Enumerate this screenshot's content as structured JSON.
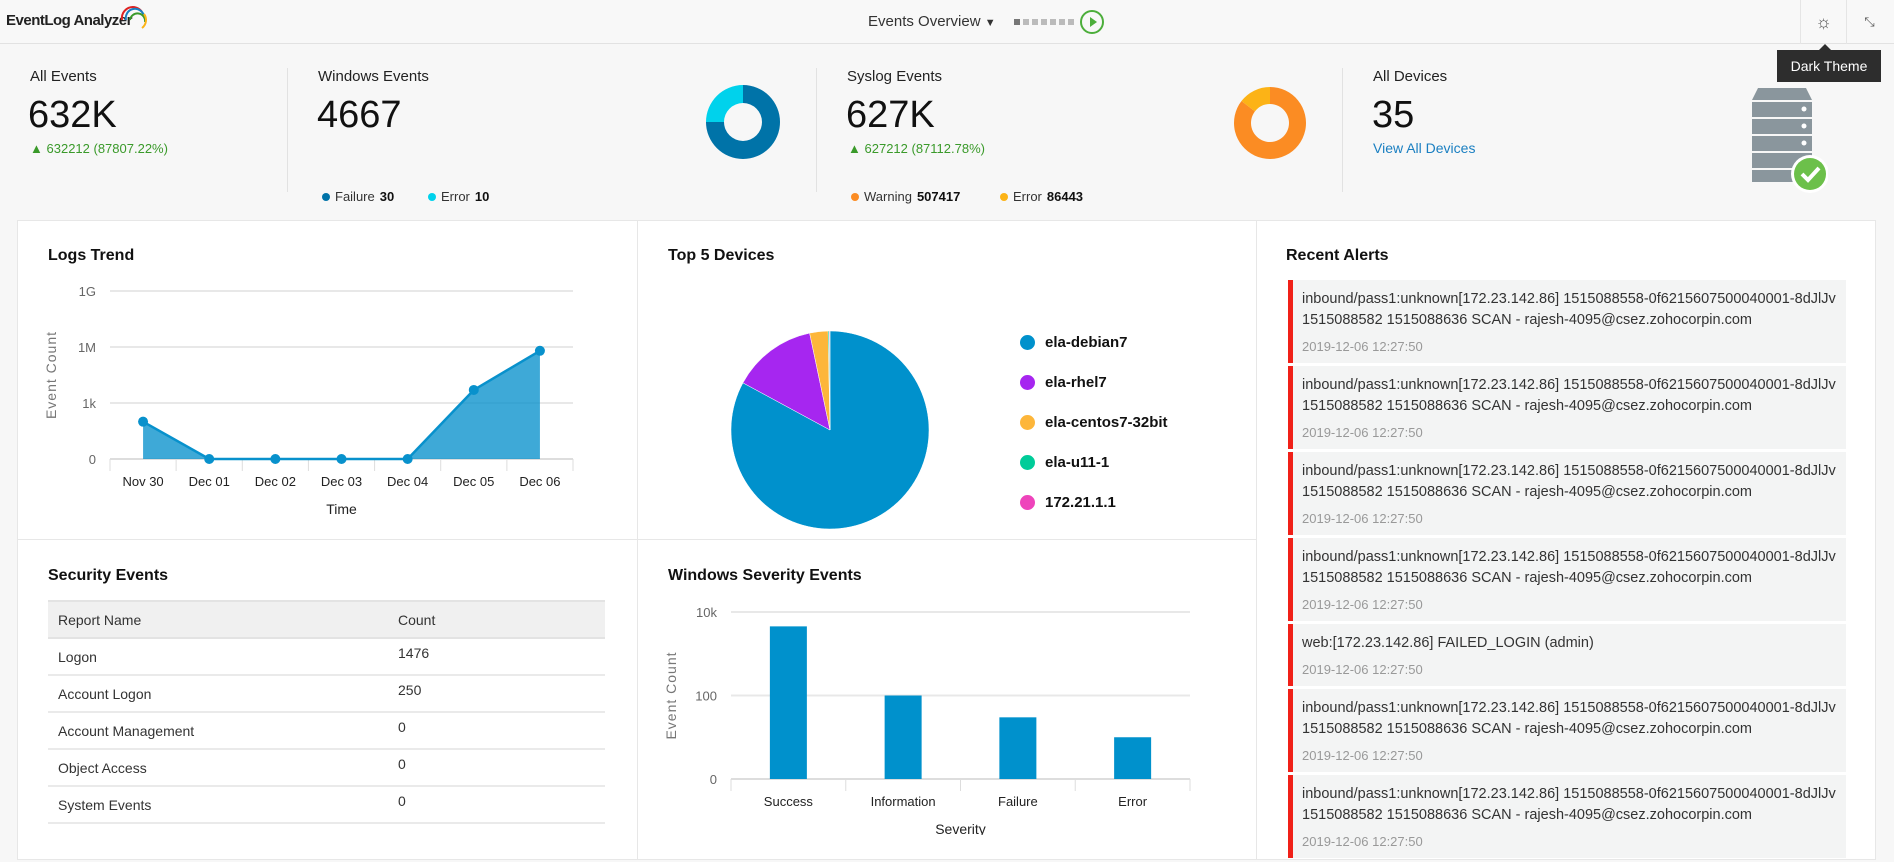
{
  "header": {
    "app_name": "EventLog Analyzer",
    "dashboard": "Events Overview",
    "tooltip": "Dark Theme"
  },
  "stats": {
    "all_events": {
      "title": "All Events",
      "value": "632K",
      "change": "632212 (87807.22%)"
    },
    "windows_events": {
      "title": "Windows Events",
      "value": "4667",
      "legend": [
        {
          "label": "Failure",
          "value": "30",
          "color": "#0073a8"
        },
        {
          "label": "Error",
          "value": "10",
          "color": "#00d2ec"
        }
      ]
    },
    "syslog_events": {
      "title": "Syslog Events",
      "value": "627K",
      "change": "627212 (87112.78%)",
      "legend": [
        {
          "label": "Warning",
          "value": "507417",
          "color": "#fb8c23"
        },
        {
          "label": "Error",
          "value": "86443",
          "color": "#fcb316"
        }
      ]
    },
    "all_devices": {
      "title": "All Devices",
      "value": "35",
      "link": "View All Devices"
    }
  },
  "panels": {
    "logs_trend": "Logs Trend",
    "top5": "Top 5 Devices",
    "alerts": "Recent Alerts",
    "security": "Security Events",
    "severity": "Windows Severity Events"
  },
  "security_table": {
    "headers": [
      "Report Name",
      "Count"
    ],
    "rows": [
      [
        "Logon",
        "1476"
      ],
      [
        "Account Logon",
        "250"
      ],
      [
        "Account Management",
        "0"
      ],
      [
        "Object Access",
        "0"
      ],
      [
        "System Events",
        "0"
      ]
    ]
  },
  "alerts": [
    {
      "msg": "inbound/pass1:unknown[172.23.142.86] 1515088558-0f6215607500040001-8dJlJv 1515088582 1515088636 SCAN - rajesh-4095@csez.zohocorpin.com",
      "ts": "2019-12-06 12:27:50"
    },
    {
      "msg": "inbound/pass1:unknown[172.23.142.86] 1515088558-0f6215607500040001-8dJlJv 1515088582 1515088636 SCAN - rajesh-4095@csez.zohocorpin.com",
      "ts": "2019-12-06 12:27:50"
    },
    {
      "msg": "inbound/pass1:unknown[172.23.142.86] 1515088558-0f6215607500040001-8dJlJv 1515088582 1515088636 SCAN - rajesh-4095@csez.zohocorpin.com",
      "ts": "2019-12-06 12:27:50"
    },
    {
      "msg": "inbound/pass1:unknown[172.23.142.86] 1515088558-0f6215607500040001-8dJlJv 1515088582 1515088636 SCAN - rajesh-4095@csez.zohocorpin.com",
      "ts": "2019-12-06 12:27:50"
    },
    {
      "msg": "web:[172.23.142.86] FAILED_LOGIN (admin)",
      "ts": "2019-12-06 12:27:50"
    },
    {
      "msg": "inbound/pass1:unknown[172.23.142.86] 1515088558-0f6215607500040001-8dJlJv 1515088582 1515088636 SCAN - rajesh-4095@csez.zohocorpin.com",
      "ts": "2019-12-06 12:27:50"
    },
    {
      "msg": "inbound/pass1:unknown[172.23.142.86] 1515088558-0f6215607500040001-8dJlJv 1515088582 1515088636 SCAN - rajesh-4095@csez.zohocorpin.com",
      "ts": "2019-12-06 12:27:50"
    }
  ],
  "chart_data": [
    {
      "type": "area",
      "title": "Logs Trend",
      "xlabel": "Time",
      "ylabel": "Event Count",
      "scale": "log",
      "categories": [
        "Nov 30",
        "Dec 01",
        "Dec 02",
        "Dec 03",
        "Dec 04",
        "Dec 05",
        "Dec 06"
      ],
      "values": [
        100,
        0,
        0,
        0,
        0,
        5000,
        627000
      ],
      "yticks": [
        {
          "label": "0",
          "value": 1
        },
        {
          "label": "1k",
          "value": 1000
        },
        {
          "label": "1M",
          "value": 1000000
        },
        {
          "label": "1G",
          "value": 1000000000
        }
      ],
      "color": "#0891cc"
    },
    {
      "type": "pie",
      "title": "Top 5 Devices",
      "labels": [
        "ela-debian7",
        "ela-rhel7",
        "ela-centos7-32bit",
        "ela-u11-1",
        "172.21.1.1"
      ],
      "values": [
        82.9,
        13.8,
        3.0,
        0.2,
        0.1
      ],
      "colors": [
        "#0091cc",
        "#a626f0",
        "#fdb63a",
        "#00cc99",
        "#ee44bb"
      ]
    },
    {
      "type": "bar",
      "title": "Windows Severity Events",
      "xlabel": "Severity",
      "ylabel": "Event Count",
      "scale": "log",
      "categories": [
        "Success",
        "Information",
        "Failure",
        "Error"
      ],
      "values": [
        4527,
        100,
        30,
        10
      ],
      "yticks": [
        {
          "label": "0",
          "value": 1
        },
        {
          "label": "100",
          "value": 100
        },
        {
          "label": "10k",
          "value": 10000
        }
      ],
      "color": "#0091cc"
    },
    {
      "type": "pie",
      "title": "Windows Events",
      "labels": [
        "Failure",
        "Error"
      ],
      "values": [
        30,
        10
      ],
      "colors": [
        "#0073a8",
        "#00d2ec"
      ]
    },
    {
      "type": "pie",
      "title": "Syslog Events",
      "labels": [
        "Warning",
        "Error"
      ],
      "values": [
        507417,
        86443
      ],
      "colors": [
        "#fb8c23",
        "#fcb316"
      ]
    }
  ]
}
